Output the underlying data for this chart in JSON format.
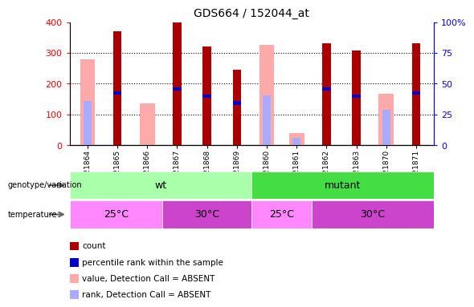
{
  "title": "GDS664 / 152044_at",
  "samples": [
    "GSM21864",
    "GSM21865",
    "GSM21866",
    "GSM21867",
    "GSM21868",
    "GSM21869",
    "GSM21860",
    "GSM21861",
    "GSM21862",
    "GSM21863",
    "GSM21870",
    "GSM21871"
  ],
  "count_values": [
    0,
    370,
    0,
    400,
    320,
    245,
    0,
    0,
    330,
    307,
    0,
    330
  ],
  "rank_values": [
    0,
    170,
    0,
    183,
    160,
    137,
    0,
    0,
    183,
    160,
    0,
    170
  ],
  "absent_value_values": [
    280,
    0,
    135,
    0,
    0,
    0,
    325,
    40,
    0,
    0,
    167,
    0
  ],
  "absent_rank_values": [
    145,
    0,
    0,
    0,
    0,
    0,
    163,
    25,
    0,
    0,
    115,
    0
  ],
  "ylim_left": [
    0,
    400
  ],
  "ylim_right": [
    0,
    100
  ],
  "yticks_left": [
    0,
    100,
    200,
    300,
    400
  ],
  "yticks_right": [
    0,
    25,
    50,
    75,
    100
  ],
  "ytick_labels_right": [
    "0",
    "25",
    "50",
    "75",
    "100%"
  ],
  "color_count": "#aa0000",
  "color_rank": "#0000cc",
  "color_absent_value": "#ffaaaa",
  "color_absent_rank": "#aaaaff",
  "genotype_wt_color": "#aaffaa",
  "genotype_mutant_color": "#44dd44",
  "temp_25_color": "#ff88ff",
  "temp_30_color": "#cc44cc",
  "bar_width": 0.28,
  "absent_bar_width": 0.28
}
